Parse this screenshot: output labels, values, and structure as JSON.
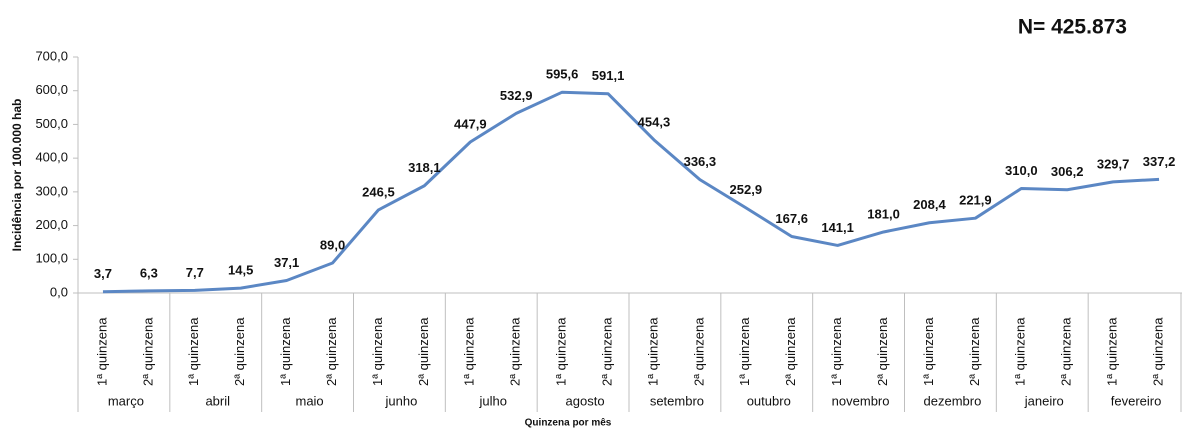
{
  "chart_data": {
    "type": "line",
    "title": "N= 425.873",
    "y_label": "Incidência por 100.000 hab",
    "x_label": "Quinzena por mês",
    "categories": [
      "1ª quinzena",
      "2ª quinzena",
      "1ª quinzena",
      "2ª quinzena",
      "1ª quinzena",
      "2ª quinzena",
      "1ª quinzena",
      "2ª quinzena",
      "1ª quinzena",
      "2ª quinzena",
      "1ª quinzena",
      "2ª quinzena",
      "1ª quinzena",
      "2ª quinzena",
      "1ª quinzena",
      "2ª quinzena",
      "1ª quinzena",
      "2ª quinzena",
      "1ª quinzena",
      "2ª quinzena",
      "1ª quinzena",
      "2ª quinzena",
      "1ª quinzena",
      "2ª quinzena"
    ],
    "months": [
      "março",
      "abril",
      "maio",
      "junho",
      "julho",
      "agosto",
      "setembro",
      "outubro",
      "novembro",
      "dezembro",
      "janeiro",
      "fevereiro"
    ],
    "series": [
      {
        "name": "Incidência",
        "color": "#5b87c4",
        "values": [
          3.7,
          6.3,
          7.7,
          14.5,
          37.1,
          89.0,
          246.5,
          318.1,
          447.9,
          532.9,
          595.6,
          591.1,
          454.3,
          336.3,
          252.9,
          167.6,
          141.1,
          181.0,
          208.4,
          221.9,
          310.0,
          306.2,
          329.7,
          337.2
        ],
        "value_labels": [
          "3,7",
          "6,3",
          "7,7",
          "14,5",
          "37,1",
          "89,0",
          "246,5",
          "318,1",
          "447,9",
          "532,9",
          "595,6",
          "591,1",
          "454,3",
          "336,3",
          "252,9",
          "167,6",
          "141,1",
          "181,0",
          "208,4",
          "221,9",
          "310,0",
          "306,2",
          "329,7",
          "337,2"
        ]
      }
    ],
    "ylim": [
      0,
      700
    ],
    "yticks": [
      {
        "value": 0,
        "label": "0,0"
      },
      {
        "value": 100,
        "label": "100,0"
      },
      {
        "value": 200,
        "label": "200,0"
      },
      {
        "value": 300,
        "label": "300,0"
      },
      {
        "value": 400,
        "label": "400,0"
      },
      {
        "value": 500,
        "label": "500,0"
      },
      {
        "value": 600,
        "label": "600,0"
      },
      {
        "value": 700,
        "label": "700,0"
      }
    ],
    "grid": false
  }
}
